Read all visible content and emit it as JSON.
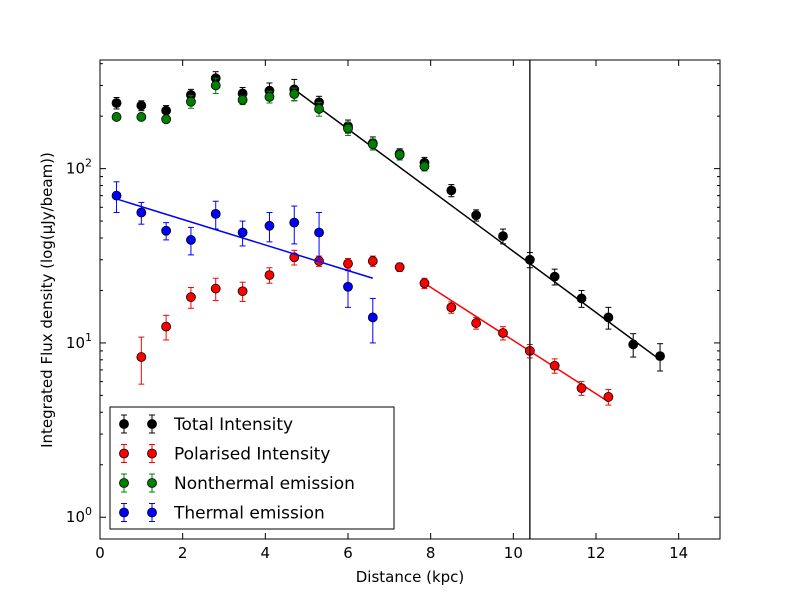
{
  "chart_data": {
    "type": "scatter",
    "title": "",
    "xlabel": "Distance (kpc)",
    "ylabel": "Integrated Flux density (log(μJy/beam))",
    "yscale": "log",
    "xlim": [
      0,
      15
    ],
    "ylim": [
      0.75,
      420
    ],
    "xticks": [
      0,
      2,
      4,
      6,
      8,
      10,
      12,
      14
    ],
    "yticks": [
      {
        "value": 1,
        "base": "10",
        "exp": "0"
      },
      {
        "value": 10,
        "base": "10",
        "exp": "1"
      },
      {
        "value": 100,
        "base": "10",
        "exp": "2"
      }
    ],
    "vline_x": 10.4,
    "legend_position": "lower-left",
    "series": [
      {
        "name": "Total Intensity",
        "color": "#000000",
        "x": [
          0.4,
          1.0,
          1.6,
          2.2,
          2.8,
          3.45,
          4.1,
          4.7,
          5.3,
          6.0,
          6.6,
          7.25,
          7.85,
          8.5,
          9.1,
          9.75,
          10.4,
          11.0,
          11.65,
          12.3,
          12.9,
          13.55
        ],
        "y": [
          238,
          230,
          215,
          265,
          330,
          270,
          280,
          285,
          240,
          175,
          140,
          122,
          108,
          75,
          54,
          41,
          30,
          24,
          18,
          14,
          9.8,
          8.4
        ],
        "err": [
          18,
          15,
          15,
          20,
          30,
          22,
          30,
          40,
          20,
          15,
          12,
          8,
          8,
          6,
          4,
          4,
          3,
          2.5,
          2,
          2,
          1.5,
          1.5
        ],
        "fit": {
          "x": [
            4.7,
            13.55
          ],
          "y": [
            285,
            8.0
          ]
        }
      },
      {
        "name": "Polarised Intensity",
        "color": "#ff0000",
        "x": [
          1.0,
          1.6,
          2.2,
          2.8,
          3.45,
          4.1,
          4.7,
          5.3,
          6.0,
          6.6,
          7.25,
          7.85,
          8.5,
          9.1,
          9.75,
          10.4,
          11.0,
          11.65,
          12.3
        ],
        "y": [
          8.3,
          12.4,
          18.3,
          20.5,
          19.8,
          24.5,
          31,
          29.5,
          28.5,
          29.5,
          27.2,
          22,
          16,
          13,
          11.4,
          9.0,
          7.4,
          5.5,
          4.9
        ],
        "err": [
          2.5,
          2,
          2.5,
          3,
          2.5,
          2.5,
          3,
          2,
          2,
          2,
          1.5,
          1.5,
          1.2,
          1,
          1,
          0.8,
          0.7,
          0.5,
          0.5
        ],
        "fit": {
          "x": [
            7.85,
            12.3
          ],
          "y": [
            22,
            4.6
          ]
        }
      },
      {
        "name": "Nonthermal emission",
        "color": "#008000",
        "x": [
          0.4,
          1.0,
          1.6,
          2.2,
          2.8,
          3.45,
          4.1,
          4.7,
          5.3,
          6.0,
          6.6,
          7.25,
          7.85
        ],
        "y": [
          198,
          198,
          192,
          242,
          300,
          248,
          258,
          268,
          220,
          170,
          138,
          120,
          103
        ],
        "err": [
          8,
          8,
          8,
          20,
          30,
          15,
          20,
          22,
          20,
          15,
          10,
          8,
          6
        ]
      },
      {
        "name": "Thermal emission",
        "color": "#0000ff",
        "x": [
          0.4,
          1.0,
          1.6,
          2.2,
          2.8,
          3.45,
          4.1,
          4.7,
          5.3,
          6.0,
          6.6
        ],
        "y": [
          70,
          56,
          44,
          39,
          55,
          43,
          47,
          49,
          43,
          21,
          14
        ],
        "err": [
          14,
          8,
          5,
          7,
          10,
          7,
          9,
          12,
          13,
          5,
          4
        ],
        "fit": {
          "x": [
            0.4,
            6.6
          ],
          "y": [
            67,
            23.5
          ]
        }
      }
    ]
  }
}
